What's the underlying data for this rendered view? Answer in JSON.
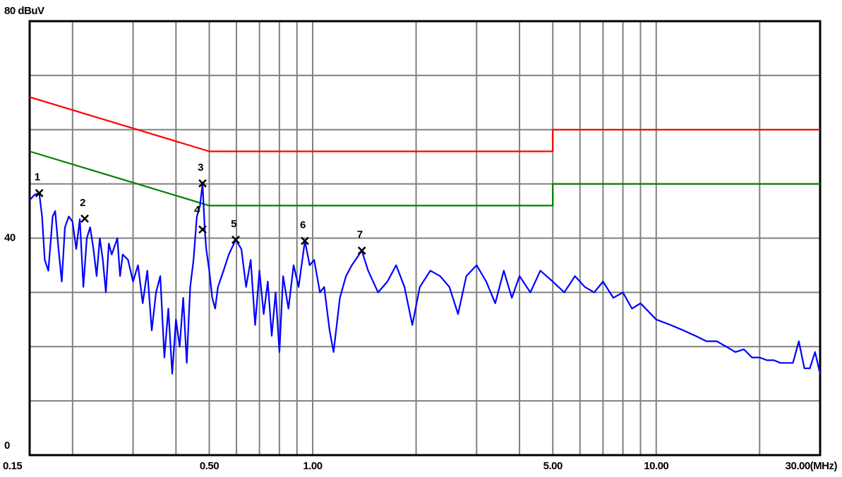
{
  "chart_data": {
    "type": "line",
    "xscale": "log",
    "xlim": [
      0.15,
      30
    ],
    "ylim": [
      0,
      80
    ],
    "xticks": [
      {
        "value": 0.15,
        "label": "0.15"
      },
      {
        "value": 0.5,
        "label": "0.50"
      },
      {
        "value": 1,
        "label": "1.00"
      },
      {
        "value": 5,
        "label": "5.00"
      },
      {
        "value": 10,
        "label": "10.00"
      },
      {
        "value": 30,
        "label": "30.00(MHz)"
      }
    ],
    "xgrid": [
      0.2,
      0.3,
      0.4,
      0.6,
      0.7,
      0.8,
      0.9,
      2,
      3,
      4,
      6,
      7,
      8,
      9,
      20
    ],
    "yticks": [
      0,
      40,
      {
        "value": 80,
        "label": "80 dBuV"
      }
    ],
    "ygrid": [
      10,
      20,
      30,
      50,
      60,
      70
    ],
    "grid": true,
    "series": [
      {
        "color": "#ff0000",
        "x": [
          0.15,
          0.5,
          5,
          5,
          30
        ],
        "values": [
          66,
          56,
          56,
          60,
          60
        ]
      },
      {
        "color": "#008000",
        "x": [
          0.15,
          0.5,
          5,
          5,
          30
        ],
        "values": [
          56,
          46,
          46,
          50,
          50
        ]
      },
      {
        "color": "#0000ff",
        "x": [
          0.15,
          0.155,
          0.16,
          0.163,
          0.166,
          0.17,
          0.175,
          0.178,
          0.182,
          0.186,
          0.19,
          0.195,
          0.2,
          0.205,
          0.21,
          0.215,
          0.22,
          0.225,
          0.23,
          0.235,
          0.24,
          0.245,
          0.25,
          0.255,
          0.26,
          0.27,
          0.275,
          0.28,
          0.29,
          0.3,
          0.31,
          0.32,
          0.33,
          0.34,
          0.35,
          0.36,
          0.37,
          0.38,
          0.39,
          0.4,
          0.41,
          0.42,
          0.43,
          0.44,
          0.45,
          0.46,
          0.47,
          0.478,
          0.485,
          0.49,
          0.5,
          0.51,
          0.52,
          0.53,
          0.55,
          0.57,
          0.597,
          0.62,
          0.64,
          0.66,
          0.68,
          0.7,
          0.72,
          0.74,
          0.76,
          0.78,
          0.8,
          0.82,
          0.85,
          0.88,
          0.91,
          0.949,
          0.98,
          1.01,
          1.05,
          1.08,
          1.12,
          1.15,
          1.2,
          1.25,
          1.3,
          1.39,
          1.45,
          1.55,
          1.65,
          1.75,
          1.85,
          1.95,
          2.05,
          2.2,
          2.35,
          2.5,
          2.65,
          2.8,
          3.0,
          3.2,
          3.4,
          3.6,
          3.8,
          4.0,
          4.3,
          4.6,
          5.0,
          5.4,
          5.8,
          6.2,
          6.6,
          7.0,
          7.5,
          8.0,
          8.5,
          9.0,
          10,
          11,
          12,
          13,
          14,
          15,
          16,
          17,
          18,
          19,
          20,
          21,
          22,
          23,
          24,
          25,
          26,
          27,
          28,
          29,
          30
        ],
        "values": [
          47,
          48,
          48.3,
          44,
          36,
          34,
          44,
          45,
          38,
          32,
          42,
          44,
          43,
          38,
          43.5,
          31,
          40,
          42,
          38,
          33,
          40,
          36,
          30,
          39,
          37,
          40,
          33,
          37,
          36,
          32,
          35,
          28,
          34,
          23,
          30,
          33,
          18,
          27,
          15,
          25,
          20,
          29,
          17,
          31,
          36,
          44,
          46,
          50.1,
          41.6,
          38,
          34,
          29,
          27,
          31,
          34,
          37,
          39.7,
          38,
          31,
          36,
          24,
          34,
          26,
          32,
          22,
          30,
          19,
          33,
          27,
          35,
          31,
          39.5,
          35,
          36,
          30,
          31,
          23,
          19,
          29,
          33,
          35,
          37.7,
          34,
          30,
          32,
          35,
          31,
          24,
          31,
          34,
          33,
          31,
          26,
          33,
          35,
          32,
          28,
          34,
          29,
          33,
          30,
          34,
          32,
          30,
          33,
          31,
          30,
          32,
          29,
          30,
          27,
          28,
          25,
          24,
          23,
          22,
          21,
          21,
          20,
          19,
          19.5,
          18,
          18,
          17.5,
          17.5,
          17,
          17,
          17,
          21,
          16,
          16,
          19,
          15
        ]
      }
    ],
    "markers": [
      {
        "label": "1",
        "x": 0.16,
        "value": 48.3
      },
      {
        "label": "2",
        "x": 0.217,
        "value": 43.6
      },
      {
        "label": "3",
        "x": 0.478,
        "value": 50.1
      },
      {
        "label": "4",
        "x": 0.478,
        "value": 41.6
      },
      {
        "label": "5",
        "x": 0.597,
        "value": 39.7
      },
      {
        "label": "6",
        "x": 0.949,
        "value": 39.5
      },
      {
        "label": "7",
        "x": 1.39,
        "value": 37.7
      }
    ]
  }
}
